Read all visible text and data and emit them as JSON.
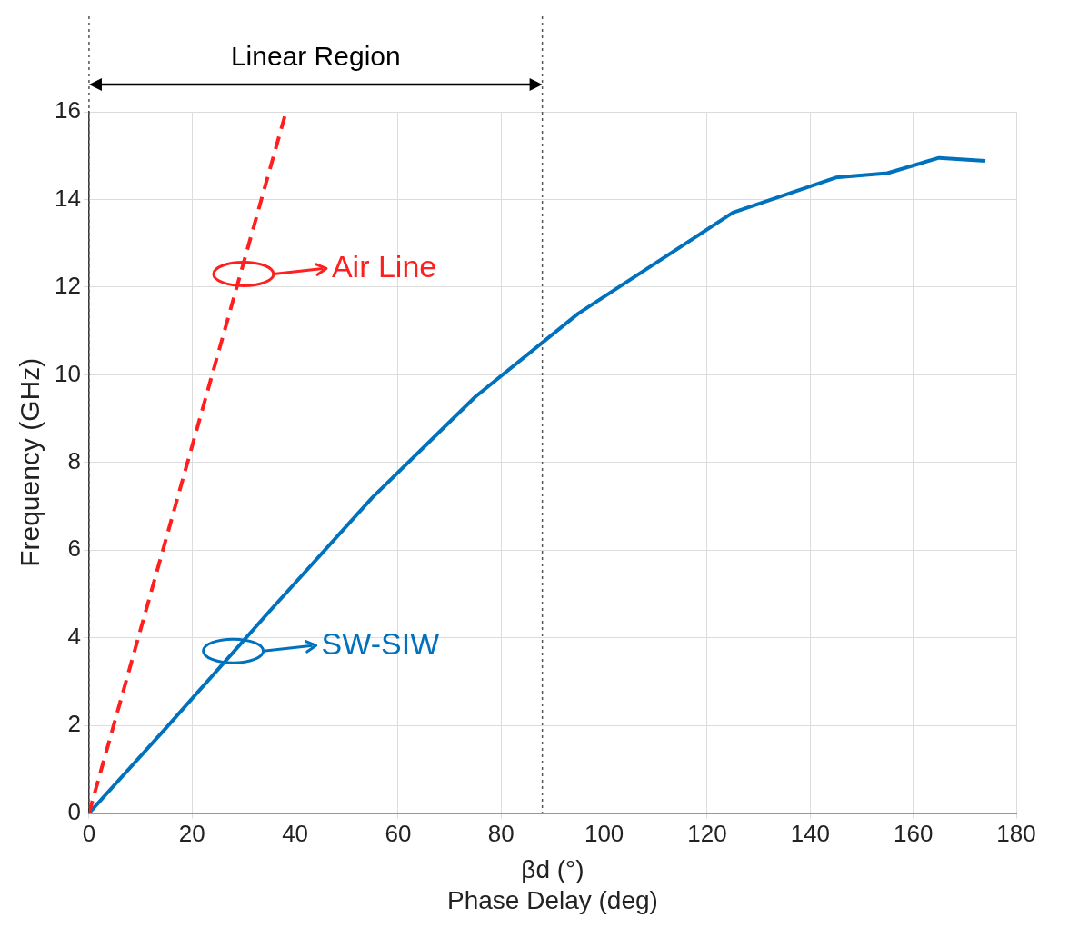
{
  "chart_data": {
    "type": "line",
    "xlabel": "βd (°)\nPhase Delay (deg)",
    "ylabel": "Frequency (GHz)",
    "xlim": [
      0,
      180
    ],
    "xticks": [
      0,
      20,
      40,
      60,
      80,
      100,
      120,
      140,
      160,
      180
    ],
    "ylim": [
      0,
      16
    ],
    "yticks": [
      0,
      2,
      4,
      6,
      8,
      10,
      12,
      14,
      16
    ],
    "grid": true,
    "legend": false,
    "series": [
      {
        "color": "#ff1f1f",
        "line_style": "dashed",
        "x": [
          0,
          38
        ],
        "values": [
          0,
          15.9
        ]
      },
      {
        "color": "#0072bd",
        "line_style": "solid",
        "x": [
          0,
          15,
          35,
          55,
          75,
          95,
          125,
          135,
          145,
          155,
          165,
          174
        ],
        "values": [
          0,
          1.95,
          4.6,
          7.2,
          9.5,
          11.4,
          13.7,
          14.1,
          14.5,
          14.6,
          14.95,
          14.88
        ]
      }
    ],
    "annotations": [
      {
        "text": "Air Line",
        "x": 30,
        "y": 12.3
      },
      {
        "text": "SW-SIW",
        "x": 28,
        "y": 3.7
      },
      "Linear Region"
    ],
    "ref_lines": [
      {
        "axis": "x",
        "value": 0,
        "color": "#555555",
        "line_style": "dotted"
      },
      {
        "axis": "x",
        "value": 88,
        "color": "#555555",
        "line_style": "dotted"
      }
    ]
  }
}
